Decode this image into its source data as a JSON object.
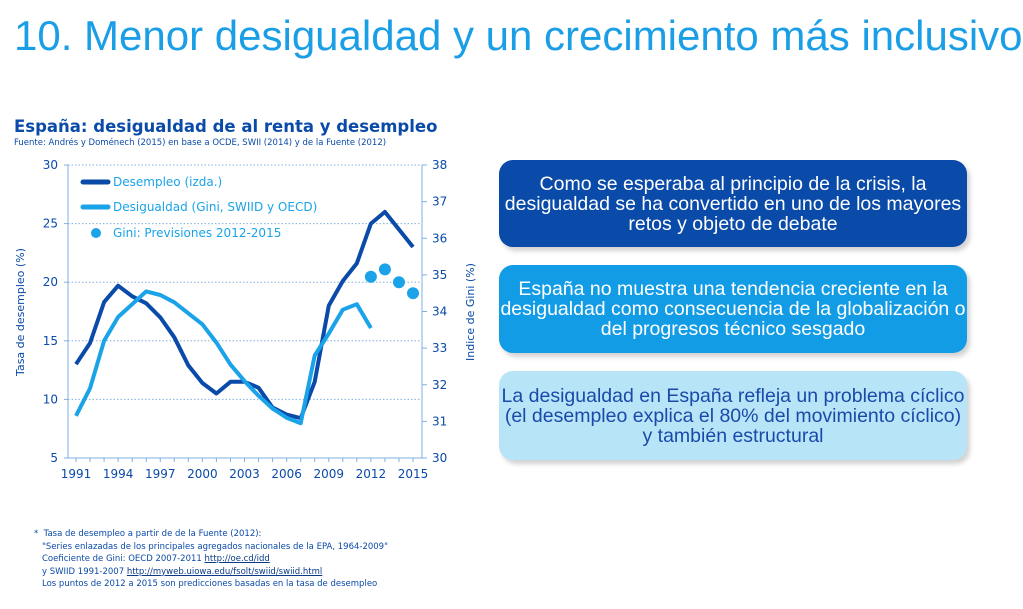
{
  "title": "10. Menor desigualdad y un crecimiento más inclusivo",
  "chart_data": {
    "type": "line",
    "title": "España: desigualdad de al renta y desempleo",
    "subtitle": "Fuente: Andrés y Doménech (2015) en base a OCDE, SWII (2014) y de la Fuente (2012)",
    "ylabel": "Tasa de desempleo (%)",
    "y2label": "Indice de Gini (%)",
    "ylim": [
      5,
      30
    ],
    "y2lim": [
      30,
      38
    ],
    "yticks": [
      "5",
      "10",
      "15",
      "20",
      "25",
      "30"
    ],
    "y2ticks": [
      "30",
      "31",
      "32",
      "33",
      "34",
      "35",
      "36",
      "37",
      "38"
    ],
    "xticks": [
      "1991",
      "1994",
      "1997",
      "2000",
      "2003",
      "2006",
      "2009",
      "2012",
      "2015"
    ],
    "x": [
      1991,
      1992,
      1993,
      1994,
      1995,
      1996,
      1997,
      1998,
      1999,
      2000,
      2001,
      2002,
      2003,
      2004,
      2005,
      2006,
      2007,
      2008,
      2009,
      2010,
      2011,
      2012,
      2013,
      2014,
      2015
    ],
    "legend_position": "top-left",
    "series": [
      {
        "name": "Desempleo (izda.)",
        "axis": "left",
        "color": "#0a4aa8",
        "values": [
          13.0,
          14.8,
          18.3,
          19.7,
          18.8,
          18.2,
          17.0,
          15.3,
          12.9,
          11.4,
          10.5,
          11.5,
          11.5,
          11.0,
          9.3,
          8.7,
          8.4,
          11.5,
          18.0,
          20.1,
          21.6,
          25.0,
          26.0,
          24.5,
          23.0
        ]
      },
      {
        "name": "Desigualdad (Gini, SWIID y OECD)",
        "axis": "right",
        "color": "#1aa3e8",
        "values": [
          31.15,
          31.9,
          33.2,
          33.85,
          34.2,
          34.55,
          34.45,
          34.25,
          33.95,
          33.65,
          33.15,
          32.55,
          32.1,
          31.7,
          31.35,
          31.1,
          30.95,
          32.8,
          33.4,
          34.05,
          34.2,
          33.55,
          null,
          null,
          null
        ]
      },
      {
        "name": "Gini: Previsiones 2012-2015",
        "axis": "right",
        "type": "scatter",
        "color": "#1aa3e8",
        "x": [
          2012,
          2013,
          2014,
          2015
        ],
        "values": [
          34.95,
          35.15,
          34.8,
          34.5
        ]
      }
    ]
  },
  "boxes": [
    "Como se esperaba al principio de la crisis, la desigualdad se ha convertido en uno de los mayores retos y objeto de debate",
    "España no muestra una tendencia creciente en la desigualdad como consecuencia de la globalización o del progresos técnico sesgado",
    "La desigualdad en España refleja un problema cíclico (el desempleo explica el 80% del movimiento cíclico) y también estructural"
  ],
  "notes": {
    "bullet": "*",
    "l1": "Tasa de desempleo a partir de de la Fuente (2012):",
    "l2": "\"Series enlazadas de los principales agregados nacionales de la EPA, 1964-2009\"",
    "l3": "Coeficiente de Gini: OECD 2007-2011 ",
    "l3link": "http://oe.cd/idd",
    "l4": "y SWIID 1991-2007 ",
    "l4link": "http://myweb.uiowa.edu/fsolt/swiid/swiid.html",
    "l5": "Los puntos de 2012 a 2015 son predicciones basadas en la tasa de desempleo"
  }
}
